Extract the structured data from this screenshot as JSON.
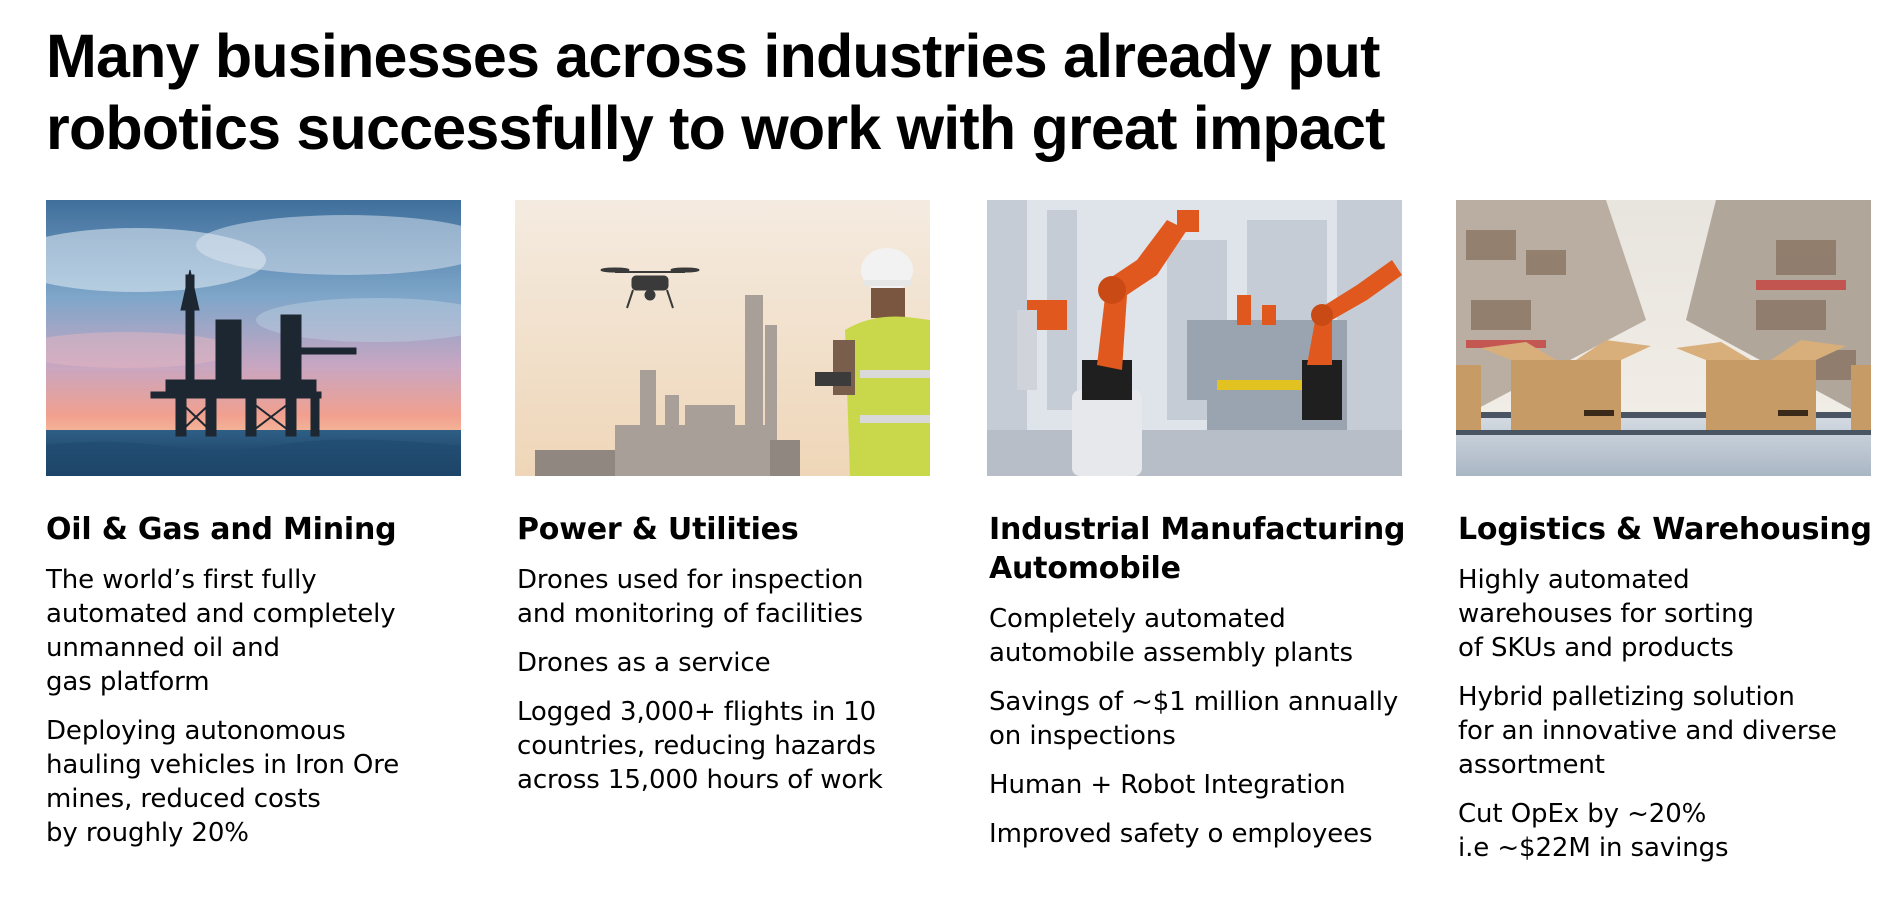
{
  "headline": {
    "line1": "Many businesses across industries already put",
    "line2": "robotics successfully to work with great impact"
  },
  "cards": [
    {
      "title": "Oil & Gas and Mining",
      "image": "offshore-oil-platform-photo",
      "bullets": [
        "The world’s first fully\nautomated and completely\nunmanned oil and\ngas platform",
        "Deploying autonomous\nhauling vehicles in Iron Ore\nmines, reduced costs\nby roughly 20%"
      ]
    },
    {
      "title": "Power & Utilities",
      "image": "drone-inspection-engineer-photo",
      "bullets": [
        "Drones used for inspection\nand monitoring of facilities",
        "Drones as a service",
        "Logged 3,000+ flights in 10\ncountries, reducing hazards\nacross 15,000 hours of work"
      ]
    },
    {
      "title": "Industrial Manufacturing\nAutomobile",
      "image": "robotic-arms-assembly-line-photo",
      "bullets": [
        "Completely automated\nautomobile assembly plants",
        "Savings of ~$1 million annually\non inspections",
        "Human + Robot Integration",
        "Improved safety o employees"
      ]
    },
    {
      "title": "Logistics & Warehousing",
      "image": "warehouse-conveyor-boxes-photo",
      "bullets": [
        "Highly automated\nwarehouses for sorting\nof SKUs and products",
        "Hybrid palletizing solution\nfor an innovative and diverse\nassortment",
        "Cut OpEx by ~20%\ni.e ~$22M in savings"
      ]
    }
  ]
}
